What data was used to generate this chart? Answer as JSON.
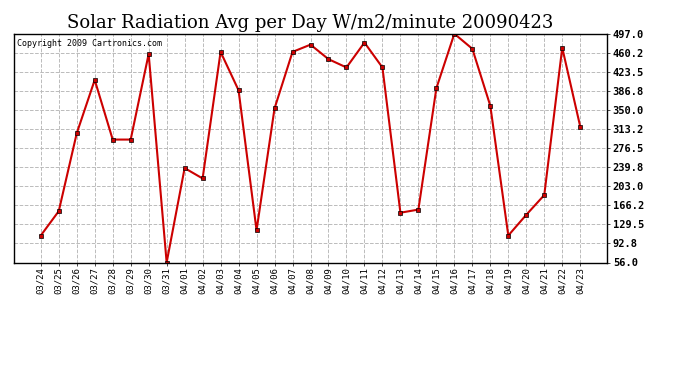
{
  "title": "Solar Radiation Avg per Day W/m2/minute 20090423",
  "copyright": "Copyright 2009 Cartronics.com",
  "line_color": "#cc0000",
  "marker": "s",
  "marker_size": 3,
  "background_color": "#ffffff",
  "plot_bg_color": "#ffffff",
  "grid_color": "#bbbbbb",
  "title_fontsize": 13,
  "labels": [
    "03/24",
    "03/25",
    "03/26",
    "03/27",
    "03/28",
    "03/29",
    "03/30",
    "03/31",
    "04/01",
    "04/02",
    "04/03",
    "04/04",
    "04/05",
    "04/06",
    "04/07",
    "04/08",
    "04/09",
    "04/10",
    "04/11",
    "04/12",
    "04/13",
    "04/14",
    "04/15",
    "04/16",
    "04/17",
    "04/18",
    "04/19",
    "04/20",
    "04/21",
    "04/22",
    "04/23"
  ],
  "values": [
    108,
    155,
    305,
    408,
    293,
    293,
    458,
    56,
    238,
    218,
    462,
    388,
    118,
    353,
    462,
    476,
    448,
    432,
    480,
    432,
    152,
    158,
    392,
    497,
    468,
    358,
    108,
    148,
    186,
    470,
    318
  ],
  "ylim": [
    56.0,
    497.0
  ],
  "yticks": [
    56.0,
    92.8,
    129.5,
    166.2,
    203.0,
    239.8,
    276.5,
    313.2,
    350.0,
    386.8,
    423.5,
    460.2,
    497.0
  ]
}
